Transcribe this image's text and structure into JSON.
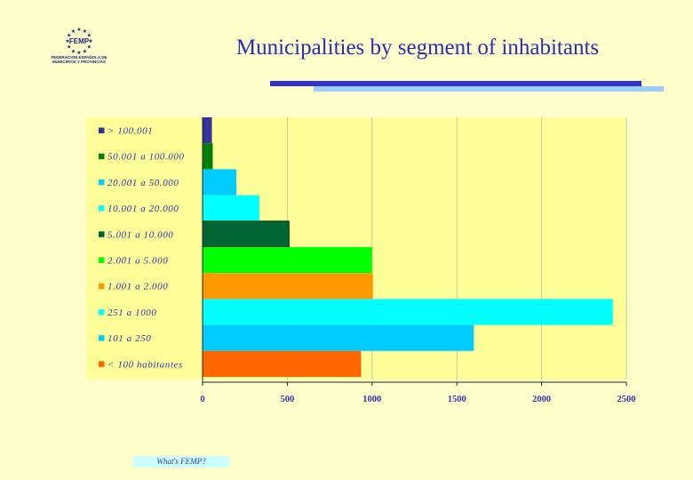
{
  "slide": {
    "title": "Municipalities by segment of inhabitants",
    "footer": "What's FEMP?"
  },
  "logo": {
    "wordmark": "FEMP",
    "subtitle_lines": [
      "FEDERACION ESPAÑOLA DE",
      "MUNICIPIOS Y PROVINCIAS"
    ]
  },
  "chart_data": {
    "type": "bar",
    "orientation": "horizontal",
    "categories": [
      "> 100.001",
      "50.001 a 100.000",
      "20.001 a 50.000",
      "10.001 a 20.000",
      "5.001 a 10.000",
      "2.001 a 5.000",
      "1.001 a 2.000",
      "251 a 1000",
      "101 a 250",
      "< 100 habitantes"
    ],
    "values": [
      55,
      60,
      200,
      335,
      510,
      1000,
      1005,
      2420,
      1600,
      935
    ],
    "colors": [
      "#333399",
      "#008000",
      "#00ccff",
      "#00ffff",
      "#006633",
      "#00ff00",
      "#ff9900",
      "#00ffff",
      "#00ccff",
      "#ff6600"
    ],
    "xlim": [
      0,
      2500
    ],
    "xticks": [
      "0",
      "500",
      "1000",
      "1500",
      "2000",
      "2500"
    ],
    "grid": true,
    "legend": "left",
    "plot_background": "#ffff99"
  }
}
